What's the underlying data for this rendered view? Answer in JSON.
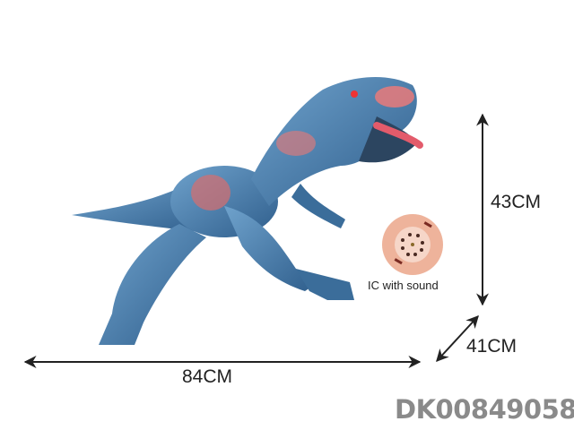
{
  "dimensions": {
    "length": "84CM",
    "height": "43CM",
    "width": "41CM"
  },
  "speaker_caption": "IC with sound",
  "product_code": "DK00849058",
  "colors": {
    "dino_body": "#4f86b8",
    "dino_dark": "#2a4a6e",
    "accent_red": "#e06a6a",
    "speaker": "#f2b9a2",
    "code_text": "#8a8a8a"
  }
}
